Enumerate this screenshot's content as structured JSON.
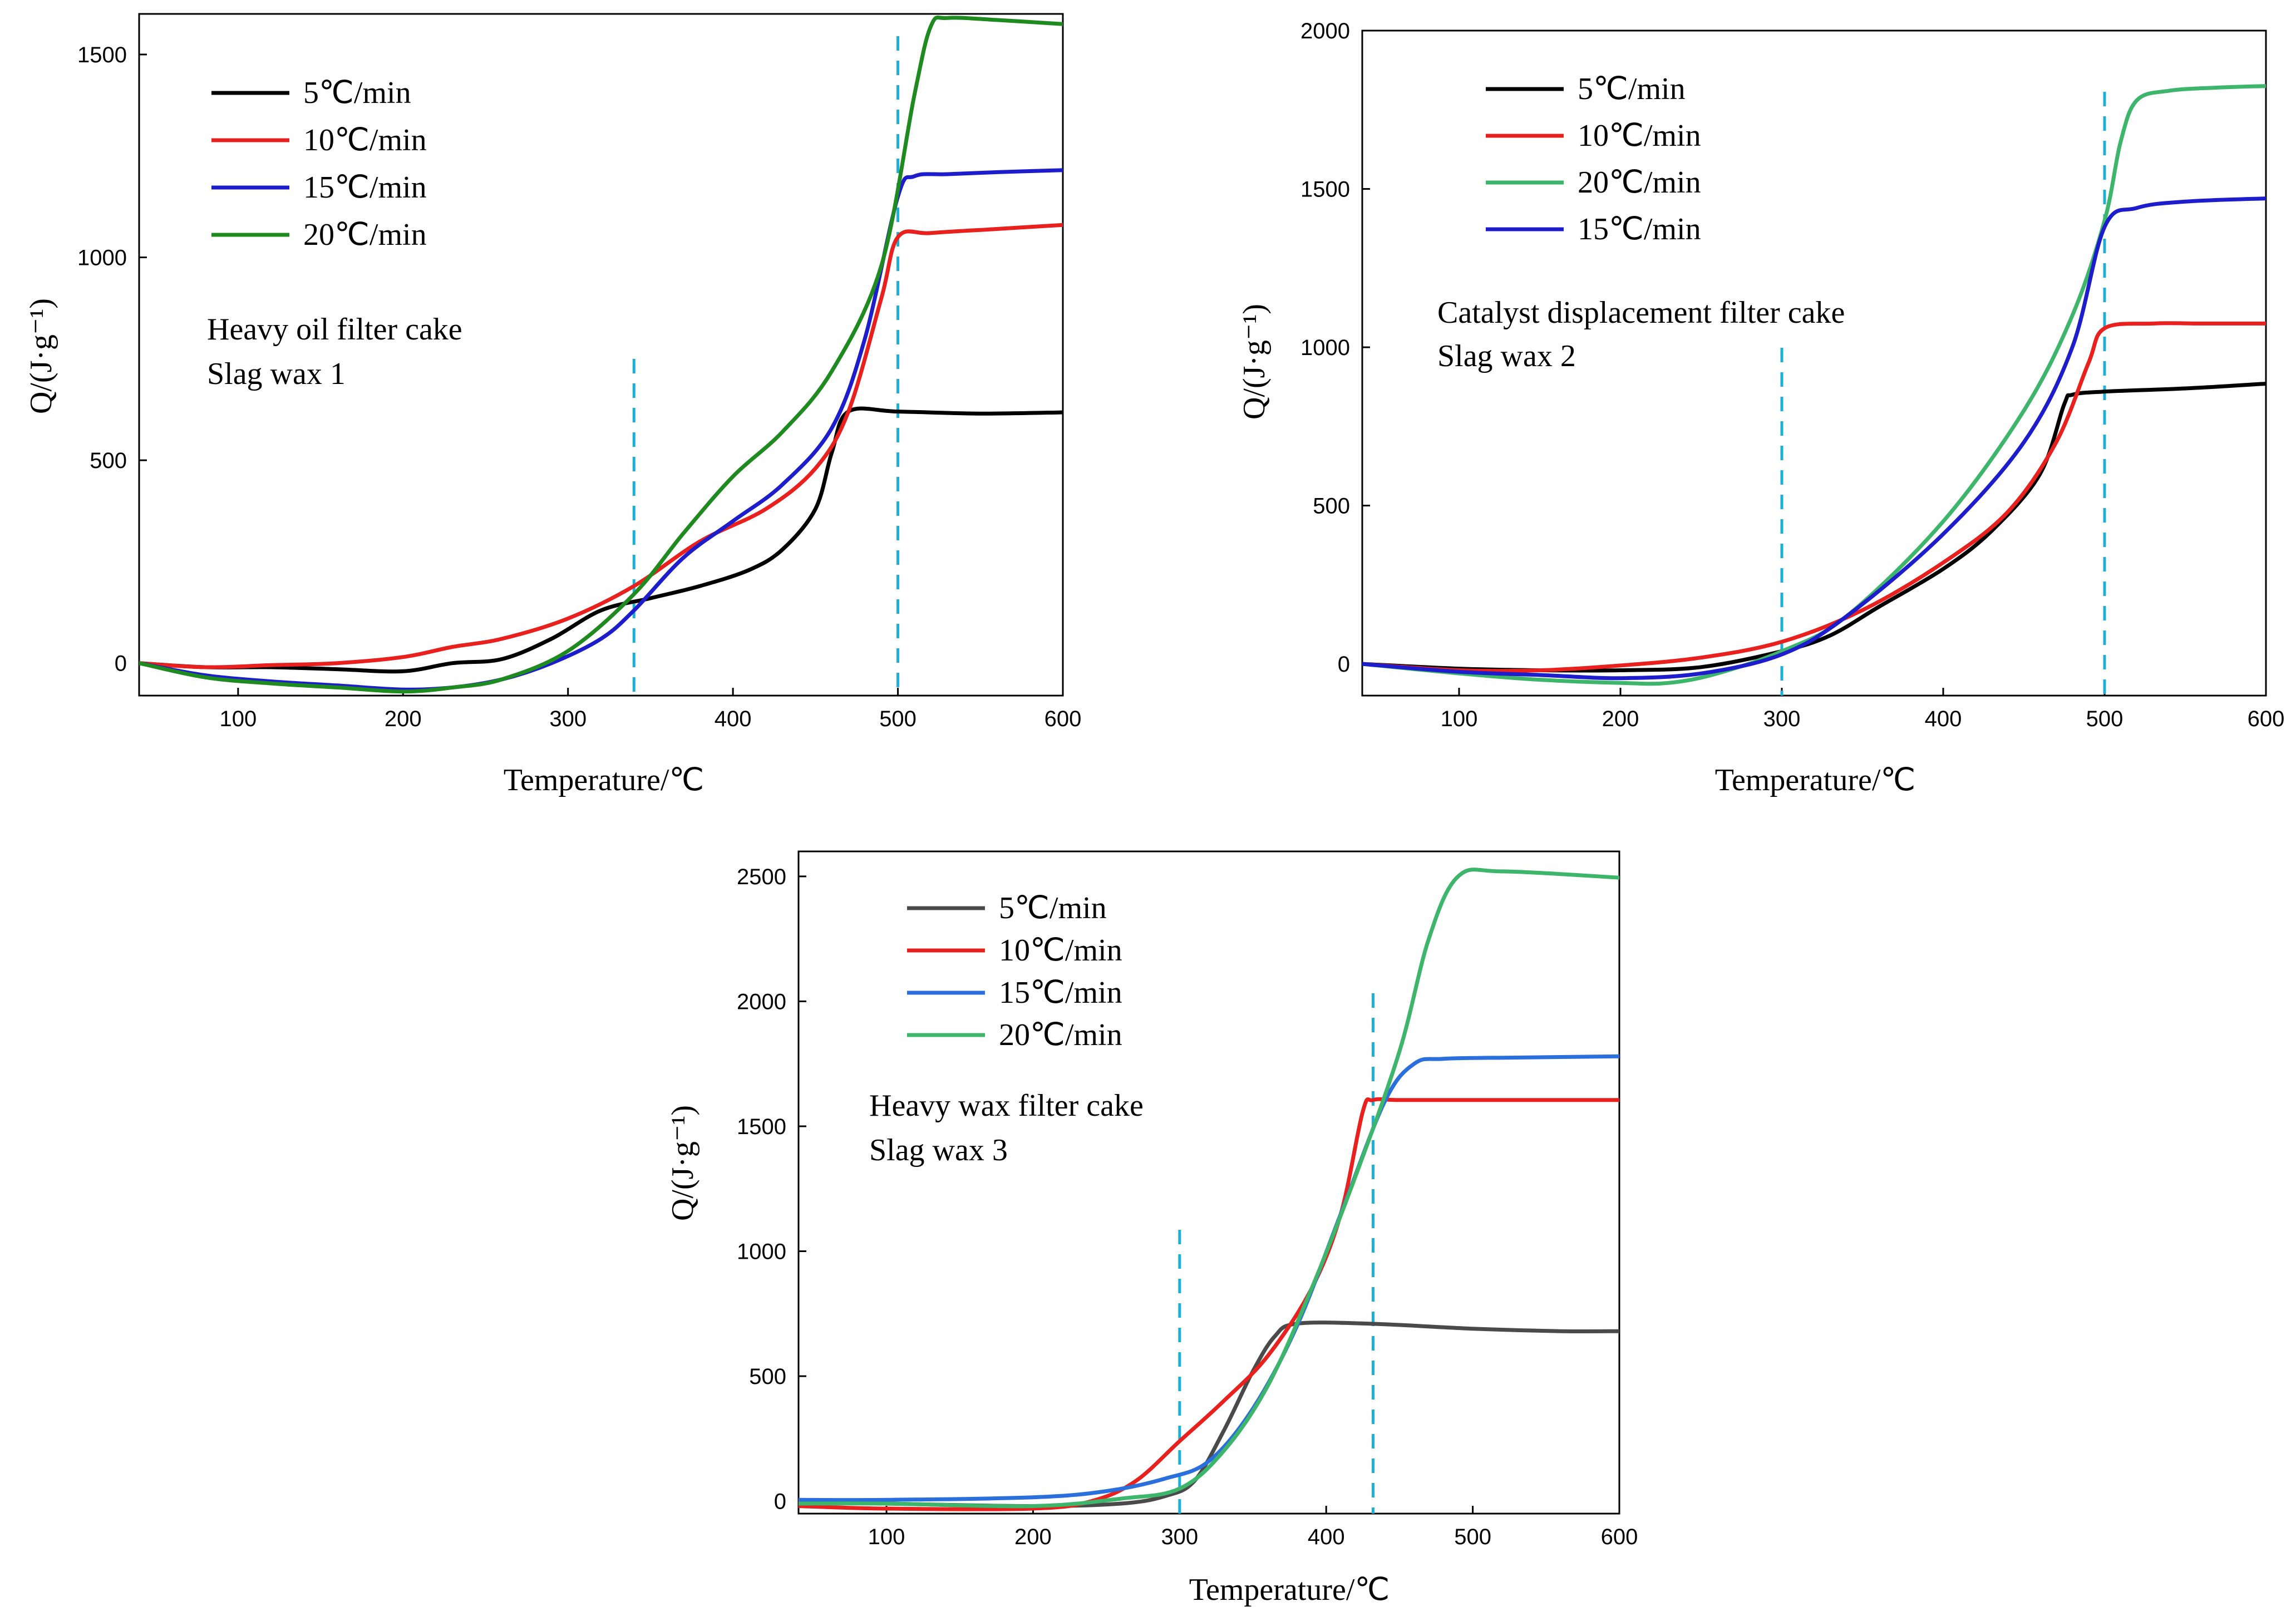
{
  "chart_data": [
    {
      "type": "line",
      "xlabel": "Temperature/℃",
      "ylabel": "Q/(J·g⁻¹)",
      "xlim": [
        40,
        600
      ],
      "ylim": [
        -80,
        1600
      ],
      "xticks": [
        100,
        200,
        300,
        400,
        500,
        600
      ],
      "yticks": [
        0,
        500,
        1000,
        1500
      ],
      "grid": false,
      "legend_position": "top-left",
      "annotation": [
        "Heavy oil filter cake",
        "Slag wax 1"
      ],
      "reference_lines_x": [
        340,
        500
      ],
      "series": [
        {
          "name": "5℃/min",
          "color": "#000000",
          "x": [
            40,
            80,
            120,
            160,
            200,
            230,
            260,
            290,
            320,
            350,
            380,
            410,
            430,
            450,
            460,
            470,
            500,
            550,
            600
          ],
          "y": [
            0,
            -10,
            -10,
            -15,
            -20,
            0,
            10,
            60,
            130,
            160,
            190,
            230,
            280,
            380,
            520,
            620,
            620,
            615,
            618
          ]
        },
        {
          "name": "10℃/min",
          "color": "#e8201e",
          "x": [
            40,
            80,
            120,
            160,
            200,
            230,
            260,
            300,
            340,
            380,
            420,
            450,
            470,
            490,
            500,
            520,
            560,
            600
          ],
          "y": [
            0,
            -10,
            -5,
            0,
            15,
            40,
            60,
            110,
            190,
            300,
            380,
            480,
            620,
            900,
            1050,
            1060,
            1070,
            1080
          ]
        },
        {
          "name": "15℃/min",
          "color": "#1d1dcc",
          "x": [
            40,
            80,
            120,
            160,
            200,
            230,
            260,
            290,
            320,
            340,
            370,
            400,
            430,
            460,
            480,
            500,
            510,
            530,
            560,
            600
          ],
          "y": [
            0,
            -30,
            -45,
            -55,
            -65,
            -60,
            -40,
            0,
            60,
            130,
            260,
            350,
            440,
            580,
            800,
            1150,
            1200,
            1205,
            1210,
            1215
          ]
        },
        {
          "name": "20℃/min",
          "color": "#1f8a1f",
          "x": [
            40,
            80,
            120,
            160,
            200,
            230,
            260,
            300,
            340,
            370,
            400,
            430,
            460,
            490,
            510,
            520,
            530,
            560,
            600
          ],
          "y": [
            0,
            -35,
            -50,
            -60,
            -70,
            -60,
            -40,
            30,
            170,
            320,
            460,
            570,
            720,
            980,
            1400,
            1570,
            1590,
            1585,
            1575
          ]
        }
      ]
    },
    {
      "type": "line",
      "xlabel": "Temperature/℃",
      "ylabel": "Q/(J·g⁻¹)",
      "xlim": [
        40,
        600
      ],
      "ylim": [
        -100,
        2000
      ],
      "xticks": [
        100,
        200,
        300,
        400,
        500,
        600
      ],
      "yticks": [
        0,
        500,
        1000,
        1500,
        2000
      ],
      "grid": false,
      "legend_position": "top-left",
      "annotation": [
        "Catalyst displacement filter cake",
        "Slag wax 2"
      ],
      "reference_lines_x": [
        300,
        500
      ],
      "series": [
        {
          "name": "5℃/min",
          "color": "#000000",
          "x": [
            40,
            100,
            150,
            200,
            250,
            300,
            330,
            360,
            400,
            430,
            460,
            475,
            480,
            500,
            550,
            600
          ],
          "y": [
            0,
            -15,
            -20,
            -20,
            -10,
            40,
            90,
            180,
            300,
            420,
            600,
            820,
            850,
            860,
            870,
            885
          ]
        },
        {
          "name": "10℃/min",
          "color": "#e8201e",
          "x": [
            40,
            100,
            150,
            200,
            250,
            300,
            350,
            400,
            440,
            470,
            490,
            500,
            530,
            560,
            600
          ],
          "y": [
            0,
            -20,
            -20,
            -5,
            20,
            70,
            170,
            320,
            480,
            700,
            950,
            1060,
            1075,
            1075,
            1075
          ]
        },
        {
          "name": "20℃/min",
          "color": "#3db56a",
          "x": [
            40,
            100,
            150,
            200,
            230,
            260,
            300,
            340,
            400,
            450,
            480,
            500,
            510,
            520,
            540,
            570,
            600
          ],
          "y": [
            0,
            -30,
            -50,
            -60,
            -60,
            -30,
            40,
            150,
            450,
            800,
            1100,
            1400,
            1650,
            1780,
            1810,
            1820,
            1825
          ]
        },
        {
          "name": "15℃/min",
          "color": "#1d1dcc",
          "x": [
            40,
            100,
            150,
            200,
            250,
            300,
            340,
            400,
            450,
            480,
            500,
            520,
            550,
            600
          ],
          "y": [
            0,
            -25,
            -35,
            -45,
            -30,
            30,
            150,
            410,
            700,
            1000,
            1380,
            1440,
            1460,
            1470
          ]
        }
      ]
    },
    {
      "type": "line",
      "xlabel": "Temperature/℃",
      "ylabel": "Q/(J·g⁻¹)",
      "xlim": [
        40,
        600
      ],
      "ylim": [
        -50,
        2600
      ],
      "xticks": [
        100,
        200,
        300,
        400,
        500,
        600
      ],
      "yticks": [
        0,
        500,
        1000,
        1500,
        2000,
        2500
      ],
      "grid": false,
      "legend_position": "top-left",
      "annotation": [
        "Heavy wax filter cake",
        "Slag wax 3"
      ],
      "reference_lines_x": [
        300,
        432
      ],
      "series": [
        {
          "name": "5℃/min",
          "color": "#4a4a4a",
          "x": [
            40,
            100,
            200,
            260,
            290,
            310,
            330,
            350,
            365,
            380,
            430,
            500,
            560,
            600
          ],
          "y": [
            0,
            -10,
            -20,
            -10,
            20,
            80,
            280,
            520,
            660,
            710,
            710,
            690,
            680,
            680
          ]
        },
        {
          "name": "10℃/min",
          "color": "#e8201e",
          "x": [
            40,
            100,
            200,
            240,
            270,
            300,
            330,
            360,
            390,
            410,
            425,
            432,
            450,
            500,
            600
          ],
          "y": [
            -20,
            -30,
            -30,
            0,
            80,
            240,
            400,
            580,
            850,
            1150,
            1560,
            1605,
            1605,
            1605,
            1605
          ]
        },
        {
          "name": "15℃/min",
          "color": "#2a6fdc",
          "x": [
            40,
            100,
            200,
            250,
            290,
            320,
            350,
            380,
            410,
            440,
            460,
            480,
            530,
            600
          ],
          "y": [
            5,
            5,
            15,
            40,
            90,
            160,
            370,
            700,
            1150,
            1600,
            1750,
            1770,
            1775,
            1780
          ]
        },
        {
          "name": "20℃/min",
          "color": "#3db56a",
          "x": [
            40,
            100,
            200,
            260,
            300,
            330,
            360,
            390,
            420,
            450,
            470,
            490,
            520,
            600
          ],
          "y": [
            -10,
            -10,
            -20,
            10,
            50,
            200,
            460,
            850,
            1300,
            1800,
            2250,
            2500,
            2520,
            2495
          ]
        }
      ]
    }
  ]
}
